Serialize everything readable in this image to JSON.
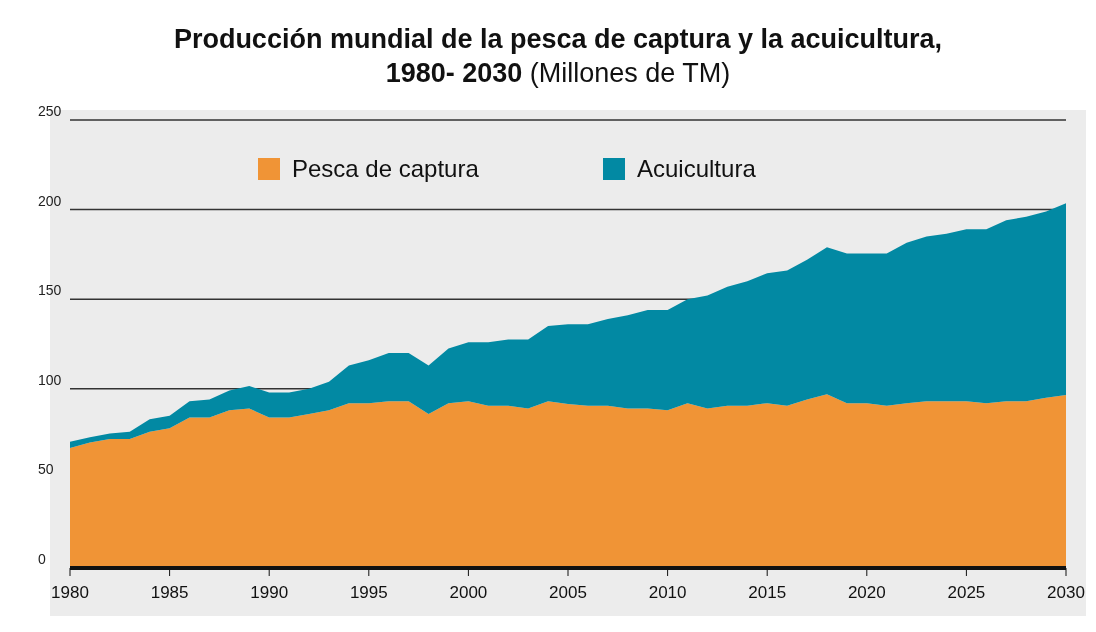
{
  "chart_data": {
    "type": "area",
    "stacked": true,
    "title": "Producción mundial de la pesca de captura y la acuicultura, 1980- 2030",
    "subtitle": "(Millones de TM)",
    "x": [
      1980,
      1981,
      1982,
      1983,
      1984,
      1985,
      1986,
      1987,
      1988,
      1989,
      1990,
      1991,
      1992,
      1993,
      1994,
      1995,
      1996,
      1997,
      1998,
      1999,
      2000,
      2001,
      2002,
      2003,
      2004,
      2005,
      2006,
      2007,
      2008,
      2009,
      2010,
      2011,
      2012,
      2013,
      2014,
      2015,
      2016,
      2017,
      2018,
      2019,
      2020,
      2021,
      2022,
      2023,
      2024,
      2025,
      2026,
      2027,
      2028,
      2029,
      2030
    ],
    "series": [
      {
        "name": "Pesca de captura",
        "color": "#f09436",
        "values": [
          67,
          70,
          72,
          72,
          76,
          78,
          84,
          84,
          88,
          89,
          84,
          84,
          86,
          88,
          92,
          92,
          93,
          93,
          86,
          92,
          93,
          90.5,
          90.5,
          89,
          93,
          91.5,
          90.5,
          90.5,
          89,
          89,
          88,
          92,
          89,
          90.5,
          90.5,
          92,
          90.5,
          94,
          97,
          92,
          92,
          90.5,
          92,
          93,
          93,
          93,
          92,
          93,
          93,
          95,
          96.5
        ]
      },
      {
        "name": "Acuicultura",
        "color": "#0289a3",
        "values": [
          3.5,
          3,
          3,
          4,
          7,
          7,
          9,
          10,
          11,
          12.5,
          14,
          14,
          14,
          16,
          21,
          24,
          27,
          27,
          27,
          30.5,
          33,
          35.5,
          37,
          38.5,
          42,
          44.5,
          45.5,
          48.5,
          52,
          55,
          56,
          58,
          63,
          66.5,
          69.5,
          72.5,
          75.5,
          78,
          82,
          83.5,
          83.5,
          85,
          89.5,
          92,
          93.5,
          96,
          97,
          101,
          103,
          104,
          107
        ]
      }
    ],
    "xlim": [
      1980,
      2030
    ],
    "xticks": [
      1980,
      1985,
      1990,
      1995,
      2000,
      2005,
      2010,
      2015,
      2020,
      2025,
      2030
    ],
    "ylim": [
      0,
      250
    ],
    "yticks": [
      0,
      50,
      100,
      150,
      200,
      250
    ],
    "grid": "y",
    "legend": "top"
  }
}
